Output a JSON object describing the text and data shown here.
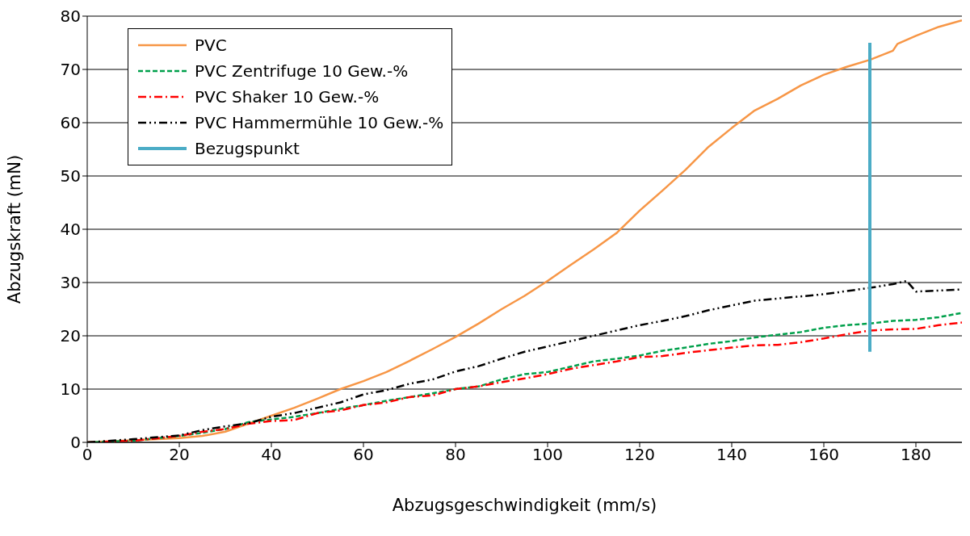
{
  "chart_data": {
    "type": "line",
    "xlabel": "Abzugsgeschwindigkeit (mm/s)",
    "ylabel": "Abzugskraft (mN)",
    "xlim": [
      0,
      190
    ],
    "xticks": [
      0,
      20,
      40,
      60,
      80,
      100,
      120,
      140,
      160,
      180
    ],
    "ylim": [
      0,
      80
    ],
    "yticks": [
      0,
      10,
      20,
      30,
      40,
      50,
      60,
      70,
      80
    ],
    "grid": "y",
    "legend": "top left",
    "marker": "none",
    "series": [
      {
        "name": "PVC",
        "color": "#f79646",
        "line_style": "solid",
        "x": [
          0,
          20,
          25,
          30,
          35,
          40,
          45,
          50,
          55,
          60,
          65,
          70,
          75,
          80,
          85,
          90,
          95,
          100,
          105,
          110,
          115,
          120,
          125,
          130,
          135,
          140,
          145,
          150,
          155,
          160,
          165,
          170,
          175,
          176,
          180,
          185,
          190
        ],
        "values": [
          0,
          0.8,
          1.2,
          2,
          3.5,
          5,
          6.5,
          8.2,
          10,
          11.5,
          13.2,
          15.3,
          17.5,
          19.8,
          22.3,
          25,
          27.5,
          30.3,
          33.3,
          36.2,
          39.3,
          43.5,
          47.3,
          51.2,
          55.5,
          59,
          62.3,
          64.5,
          67,
          69,
          70.5,
          71.8,
          73.5,
          74.8,
          76.3,
          78,
          79.2
        ]
      },
      {
        "name": "PVC Zentrifuge 10 Gew.-%",
        "color": "#00a04b",
        "line_style": "dashed",
        "x": [
          0,
          10,
          20,
          25,
          30,
          35,
          40,
          45,
          50,
          55,
          60,
          65,
          70,
          75,
          80,
          85,
          90,
          95,
          100,
          105,
          110,
          115,
          120,
          125,
          130,
          135,
          140,
          145,
          150,
          155,
          160,
          165,
          170,
          175,
          180,
          185,
          190
        ],
        "values": [
          0,
          0.3,
          1.2,
          1.8,
          2.5,
          3.8,
          4.3,
          4.8,
          5.5,
          6.3,
          7,
          7.8,
          8.5,
          9.2,
          10,
          10.5,
          11.8,
          12.8,
          13.2,
          14.2,
          15.2,
          15.7,
          16.3,
          17.2,
          17.8,
          18.5,
          19,
          19.7,
          20.2,
          20.7,
          21.5,
          22,
          22.3,
          22.8,
          23,
          23.5,
          24.3
        ]
      },
      {
        "name": "PVC Shaker 10 Gew.-%",
        "color": "#ff0000",
        "line_style": "dashdot",
        "x": [
          0,
          10,
          20,
          25,
          30,
          35,
          40,
          45,
          50,
          55,
          60,
          65,
          70,
          75,
          80,
          85,
          90,
          95,
          100,
          105,
          110,
          115,
          120,
          125,
          130,
          135,
          140,
          145,
          150,
          155,
          160,
          165,
          170,
          175,
          180,
          185,
          190
        ],
        "values": [
          0,
          0.3,
          1.2,
          2,
          2.5,
          3.5,
          4,
          4.2,
          5.5,
          6,
          7,
          7.5,
          8.5,
          8.8,
          10,
          10.5,
          11.3,
          12,
          12.8,
          13.8,
          14.5,
          15.2,
          16,
          16.2,
          16.8,
          17.3,
          17.8,
          18.2,
          18.3,
          18.8,
          19.5,
          20.3,
          21,
          21.2,
          21.3,
          22,
          22.5
        ]
      },
      {
        "name": "PVC Hammermühle 10 Gew.-%",
        "color": "#000000",
        "line_style": "dashdotdot",
        "x": [
          0,
          10,
          20,
          25,
          30,
          35,
          40,
          45,
          50,
          55,
          60,
          65,
          70,
          75,
          80,
          85,
          90,
          95,
          100,
          105,
          110,
          115,
          120,
          125,
          130,
          135,
          140,
          145,
          150,
          155,
          160,
          165,
          170,
          175,
          178,
          180,
          185,
          190
        ],
        "values": [
          0,
          0.6,
          1.3,
          2.3,
          3,
          3.6,
          4.8,
          5.5,
          6.5,
          7.5,
          9,
          9.8,
          11,
          11.8,
          13.3,
          14.3,
          15.7,
          17,
          18,
          19,
          20,
          21,
          22,
          22.8,
          23.7,
          24.8,
          25.7,
          26.6,
          27,
          27.4,
          27.8,
          28.4,
          29,
          29.7,
          30.3,
          28.3,
          28.5,
          28.7
        ]
      },
      {
        "name": "Bezugspunkt",
        "color": "#4bacc6",
        "line_style": "solid",
        "x": [
          170,
          170
        ],
        "values": [
          17,
          75
        ]
      }
    ]
  }
}
